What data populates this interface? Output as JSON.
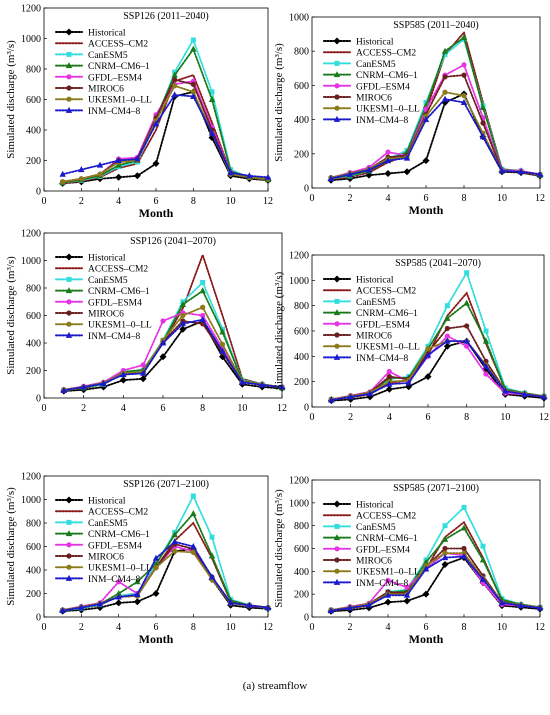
{
  "figure_caption": "(a) streamflow",
  "chart_data": [
    {
      "type": "line",
      "title": "SSP126 (2011–2040)",
      "xlabel": "Month",
      "ylabel": "Simulated discharge (m³/s)",
      "xlim": [
        0,
        12
      ],
      "ylim": [
        0,
        1200
      ],
      "xticks": [
        0,
        2,
        4,
        6,
        8,
        10,
        12
      ],
      "yticks": [
        0,
        200,
        400,
        600,
        800,
        1000,
        1200
      ],
      "legend_position": "top-left",
      "x": [
        1,
        2,
        3,
        4,
        5,
        6,
        7,
        8,
        9,
        10,
        11,
        12
      ],
      "series": [
        {
          "name": "Historical",
          "color": "#000000",
          "values": [
            50,
            60,
            80,
            90,
            100,
            180,
            620,
            650,
            350,
            100,
            80,
            70
          ]
        },
        {
          "name": "ACCESS–CM2",
          "color": "#8b1a1a",
          "values": [
            50,
            65,
            90,
            150,
            180,
            400,
            720,
            760,
            450,
            120,
            90,
            70
          ]
        },
        {
          "name": "CanESM5",
          "color": "#33dddd",
          "values": [
            55,
            70,
            95,
            160,
            190,
            450,
            780,
            990,
            650,
            140,
            90,
            75
          ]
        },
        {
          "name": "CNRM–CM6–1",
          "color": "#1a7a1a",
          "values": [
            55,
            75,
            100,
            170,
            200,
            480,
            760,
            930,
            600,
            130,
            90,
            75
          ]
        },
        {
          "name": "GFDL–ESM4",
          "color": "#e633e6",
          "values": [
            60,
            80,
            110,
            210,
            220,
            500,
            700,
            720,
            420,
            120,
            90,
            80
          ]
        },
        {
          "name": "MIROC6",
          "color": "#6b1f1f",
          "values": [
            60,
            80,
            110,
            200,
            210,
            480,
            730,
            700,
            400,
            115,
            90,
            80
          ]
        },
        {
          "name": "UKESM1–0–LL",
          "color": "#8b7a1a",
          "values": [
            60,
            80,
            110,
            190,
            200,
            460,
            690,
            650,
            380,
            110,
            90,
            80
          ]
        },
        {
          "name": "INM–CM4–8",
          "color": "#1a1acc",
          "values": [
            110,
            140,
            170,
            200,
            210,
            440,
            630,
            620,
            380,
            120,
            100,
            90
          ]
        }
      ]
    },
    {
      "type": "line",
      "title": "SSP585 (2011–2040)",
      "xlabel": "Month",
      "ylabel": "Simulated discharge (m³/s)",
      "xlim": [
        0,
        12
      ],
      "ylim": [
        0,
        1000
      ],
      "xticks": [
        0,
        2,
        4,
        6,
        8,
        10,
        12
      ],
      "yticks": [
        0,
        200,
        400,
        600,
        800,
        1000
      ],
      "legend_position": "top-left",
      "x": [
        1,
        2,
        3,
        4,
        5,
        6,
        7,
        8,
        9,
        10,
        11,
        12
      ],
      "series": [
        {
          "name": "Historical",
          "color": "#000000",
          "values": [
            45,
            55,
            75,
            85,
            95,
            160,
            500,
            550,
            300,
            95,
            90,
            70
          ]
        },
        {
          "name": "ACCESS–CM2",
          "color": "#8b1a1a",
          "values": [
            50,
            65,
            90,
            150,
            190,
            450,
            780,
            910,
            500,
            110,
            95,
            70
          ]
        },
        {
          "name": "CanESM5",
          "color": "#33dddd",
          "values": [
            55,
            70,
            100,
            170,
            220,
            500,
            780,
            870,
            480,
            110,
            100,
            75
          ]
        },
        {
          "name": "CNRM–CM6–1",
          "color": "#1a7a1a",
          "values": [
            55,
            75,
            100,
            160,
            210,
            480,
            800,
            880,
            470,
            110,
            100,
            75
          ]
        },
        {
          "name": "GFDL–ESM4",
          "color": "#e633e6",
          "values": [
            60,
            90,
            120,
            210,
            190,
            460,
            660,
            720,
            410,
            105,
            100,
            80
          ]
        },
        {
          "name": "MIROC6",
          "color": "#6b1f1f",
          "values": [
            60,
            85,
            110,
            180,
            190,
            430,
            650,
            660,
            380,
            100,
            95,
            80
          ]
        },
        {
          "name": "UKESM1–0–LL",
          "color": "#8b7a1a",
          "values": [
            60,
            85,
            110,
            170,
            180,
            420,
            560,
            540,
            320,
            100,
            95,
            80
          ]
        },
        {
          "name": "INM–CM4–8",
          "color": "#1a1acc",
          "values": [
            55,
            80,
            105,
            160,
            175,
            400,
            520,
            500,
            300,
            100,
            95,
            80
          ]
        }
      ]
    },
    {
      "type": "line",
      "title": "SSP126 (2041–2070)",
      "xlabel": "",
      "ylabel": "Simulated discharge (m³/s)",
      "xlim": [
        0,
        12
      ],
      "ylim": [
        0,
        1200
      ],
      "xticks": [
        0,
        2,
        4,
        6,
        8,
        10,
        12
      ],
      "yticks": [
        0,
        200,
        400,
        600,
        800,
        1000,
        1200
      ],
      "legend_position": "top-left",
      "x": [
        1,
        2,
        3,
        4,
        5,
        6,
        7,
        8,
        9,
        10,
        11,
        12
      ],
      "series": [
        {
          "name": "Historical",
          "color": "#000000",
          "values": [
            50,
            60,
            80,
            130,
            140,
            300,
            500,
            560,
            300,
            100,
            80,
            70
          ]
        },
        {
          "name": "ACCESS–CM2",
          "color": "#8b1a1a",
          "values": [
            55,
            70,
            100,
            180,
            200,
            400,
            650,
            1040,
            600,
            140,
            100,
            75
          ]
        },
        {
          "name": "CanESM5",
          "color": "#33dddd",
          "values": [
            55,
            75,
            100,
            190,
            200,
            420,
            700,
            840,
            500,
            130,
            100,
            75
          ]
        },
        {
          "name": "CNRM–CM6–1",
          "color": "#1a7a1a",
          "values": [
            55,
            75,
            105,
            190,
            205,
            410,
            680,
            780,
            480,
            125,
            100,
            75
          ]
        },
        {
          "name": "GFDL–ESM4",
          "color": "#e633e6",
          "values": [
            60,
            85,
            115,
            200,
            240,
            560,
            620,
            600,
            360,
            120,
            95,
            80
          ]
        },
        {
          "name": "MIROC6",
          "color": "#6b1f1f",
          "values": [
            60,
            80,
            110,
            170,
            180,
            410,
            560,
            540,
            330,
            115,
            95,
            80
          ]
        },
        {
          "name": "UKESM1–0–LL",
          "color": "#8b7a1a",
          "values": [
            60,
            80,
            110,
            180,
            190,
            420,
            600,
            660,
            390,
            120,
            100,
            80
          ]
        },
        {
          "name": "INM–CM4–8",
          "color": "#1a1acc",
          "values": [
            55,
            80,
            105,
            170,
            180,
            400,
            540,
            570,
            340,
            115,
            95,
            80
          ]
        }
      ]
    },
    {
      "type": "line",
      "title": "SSP585 (2041–2070)",
      "xlabel": "",
      "ylabel": "Simulated discharge (m³/s)",
      "xlim": [
        0,
        12
      ],
      "ylim": [
        0,
        1200
      ],
      "xticks": [
        0,
        2,
        4,
        6,
        8,
        10,
        12
      ],
      "yticks": [
        0,
        200,
        400,
        600,
        800,
        1000,
        1200
      ],
      "legend_position": "top-left",
      "x": [
        1,
        2,
        3,
        4,
        5,
        6,
        7,
        8,
        9,
        10,
        11,
        12
      ],
      "series": [
        {
          "name": "Historical",
          "color": "#000000",
          "values": [
            50,
            60,
            80,
            140,
            160,
            240,
            480,
            520,
            300,
            100,
            85,
            70
          ]
        },
        {
          "name": "ACCESS–CM2",
          "color": "#8b1a1a",
          "values": [
            55,
            75,
            100,
            190,
            210,
            410,
            720,
            900,
            500,
            140,
            100,
            80
          ]
        },
        {
          "name": "CanESM5",
          "color": "#33dddd",
          "values": [
            60,
            80,
            110,
            220,
            240,
            480,
            800,
            1060,
            600,
            150,
            110,
            85
          ]
        },
        {
          "name": "CNRM–CM6–1",
          "color": "#1a7a1a",
          "values": [
            60,
            80,
            110,
            230,
            230,
            460,
            700,
            820,
            520,
            140,
            110,
            85
          ]
        },
        {
          "name": "GFDL–ESM4",
          "color": "#e633e6",
          "values": [
            60,
            90,
            120,
            280,
            200,
            400,
            560,
            480,
            260,
            110,
            100,
            80
          ]
        },
        {
          "name": "MIROC6",
          "color": "#6b1f1f",
          "values": [
            60,
            85,
            115,
            240,
            220,
            430,
            620,
            640,
            360,
            130,
            105,
            85
          ]
        },
        {
          "name": "UKESM1–0–LL",
          "color": "#8b7a1a",
          "values": [
            60,
            85,
            115,
            200,
            210,
            460,
            520,
            520,
            330,
            130,
            105,
            85
          ]
        },
        {
          "name": "INM–CM4–8",
          "color": "#1a1acc",
          "values": [
            55,
            80,
            105,
            180,
            190,
            410,
            520,
            520,
            320,
            125,
            100,
            80
          ]
        }
      ]
    },
    {
      "type": "line",
      "title": "SSP126 (2071–2100)",
      "xlabel": "Month",
      "ylabel": "Simulated discharge (m³/s)",
      "xlim": [
        0,
        12
      ],
      "ylim": [
        0,
        1200
      ],
      "xticks": [
        0,
        2,
        4,
        6,
        8,
        10,
        12
      ],
      "yticks": [
        0,
        200,
        400,
        600,
        800,
        1000,
        1200
      ],
      "legend_position": "top-left",
      "x": [
        1,
        2,
        3,
        4,
        5,
        6,
        7,
        8,
        9,
        10,
        11,
        12
      ],
      "series": [
        {
          "name": "Historical",
          "color": "#000000",
          "values": [
            50,
            60,
            80,
            120,
            130,
            200,
            560,
            580,
            320,
            100,
            80,
            70
          ]
        },
        {
          "name": "ACCESS–CM2",
          "color": "#8b1a1a",
          "values": [
            55,
            75,
            100,
            180,
            200,
            420,
            650,
            800,
            500,
            130,
            100,
            75
          ]
        },
        {
          "name": "CanESM5",
          "color": "#33dddd",
          "values": [
            55,
            75,
            105,
            180,
            200,
            450,
            720,
            1030,
            680,
            150,
            100,
            75
          ]
        },
        {
          "name": "CNRM–CM6–1",
          "color": "#1a7a1a",
          "values": [
            55,
            80,
            110,
            200,
            300,
            450,
            700,
            880,
            520,
            140,
            100,
            80
          ]
        },
        {
          "name": "GFDL–ESM4",
          "color": "#e633e6",
          "values": [
            60,
            90,
            120,
            300,
            200,
            420,
            600,
            560,
            330,
            120,
            95,
            80
          ]
        },
        {
          "name": "MIROC6",
          "color": "#6b1f1f",
          "values": [
            60,
            85,
            115,
            170,
            180,
            420,
            620,
            580,
            340,
            120,
            100,
            80
          ]
        },
        {
          "name": "UKESM1–0–LL",
          "color": "#8b7a1a",
          "values": [
            60,
            85,
            115,
            170,
            180,
            420,
            560,
            550,
            320,
            115,
            100,
            80
          ]
        },
        {
          "name": "INM–CM4–8",
          "color": "#1a1acc",
          "values": [
            55,
            80,
            110,
            170,
            190,
            500,
            640,
            600,
            340,
            120,
            100,
            80
          ]
        }
      ]
    },
    {
      "type": "line",
      "title": "SSP585 (2071–2100)",
      "xlabel": "Month",
      "ylabel": "Simulated discharge (m³/s)",
      "xlim": [
        0,
        12
      ],
      "ylim": [
        0,
        1200
      ],
      "xticks": [
        0,
        2,
        4,
        6,
        8,
        10,
        12
      ],
      "yticks": [
        0,
        200,
        400,
        600,
        800,
        1000,
        1200
      ],
      "legend_position": "top-left",
      "x": [
        1,
        2,
        3,
        4,
        5,
        6,
        7,
        8,
        9,
        10,
        11,
        12
      ],
      "series": [
        {
          "name": "Historical",
          "color": "#000000",
          "values": [
            50,
            60,
            80,
            130,
            140,
            200,
            460,
            520,
            300,
            100,
            85,
            70
          ]
        },
        {
          "name": "ACCESS–CM2",
          "color": "#8b1a1a",
          "values": [
            55,
            75,
            100,
            200,
            220,
            420,
            700,
            830,
            520,
            140,
            110,
            80
          ]
        },
        {
          "name": "CanESM5",
          "color": "#33dddd",
          "values": [
            60,
            80,
            110,
            220,
            240,
            500,
            800,
            960,
            620,
            160,
            110,
            85
          ]
        },
        {
          "name": "CNRM–CM6–1",
          "color": "#1a7a1a",
          "values": [
            60,
            80,
            110,
            210,
            230,
            480,
            680,
            780,
            500,
            150,
            110,
            85
          ]
        },
        {
          "name": "GFDL–ESM4",
          "color": "#e633e6",
          "values": [
            60,
            90,
            120,
            320,
            260,
            420,
            560,
            540,
            300,
            110,
            100,
            80
          ]
        },
        {
          "name": "MIROC6",
          "color": "#6b1f1f",
          "values": [
            60,
            85,
            115,
            220,
            210,
            440,
            600,
            600,
            360,
            130,
            105,
            85
          ]
        },
        {
          "name": "UKESM1–0–LL",
          "color": "#8b7a1a",
          "values": [
            60,
            85,
            115,
            200,
            200,
            450,
            560,
            560,
            340,
            130,
            105,
            85
          ]
        },
        {
          "name": "INM–CM4–8",
          "color": "#1a1acc",
          "values": [
            55,
            80,
            105,
            190,
            190,
            420,
            520,
            530,
            330,
            125,
            100,
            80
          ]
        }
      ]
    }
  ]
}
